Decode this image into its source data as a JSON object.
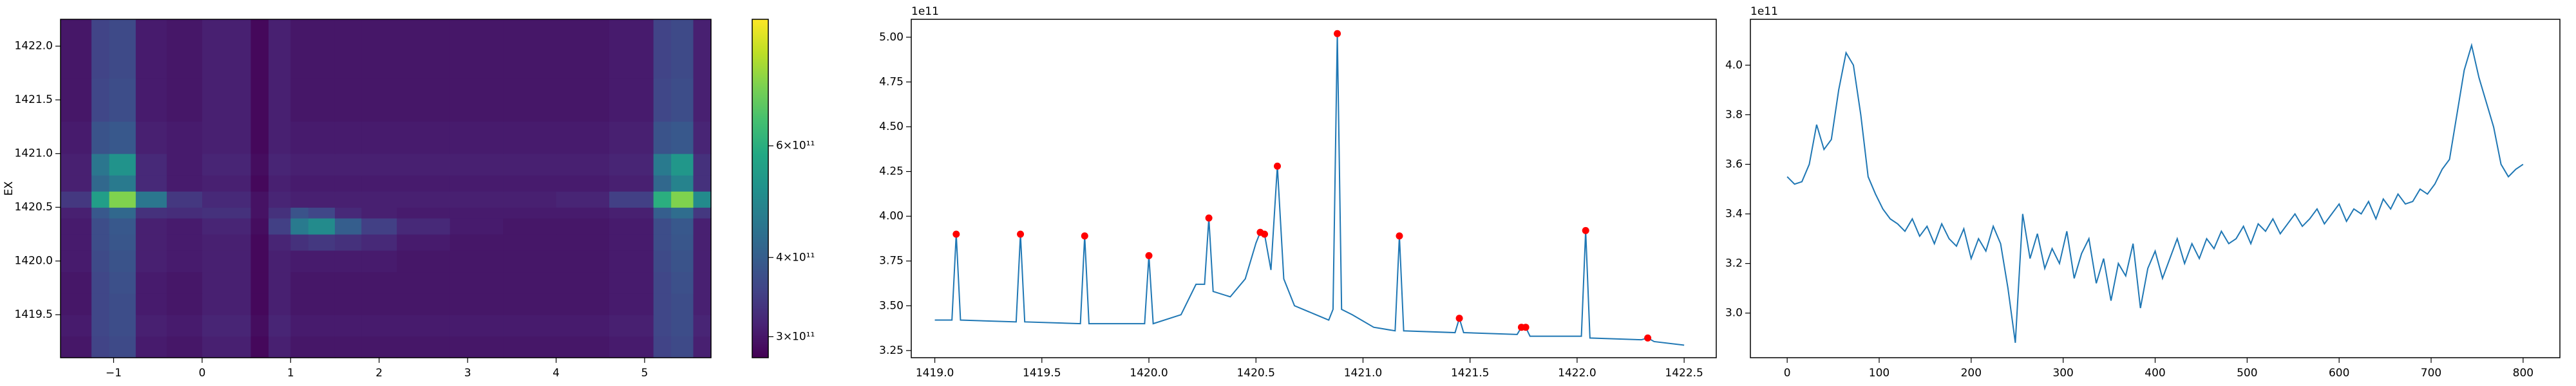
{
  "chart_data": [
    {
      "type": "heatmap",
      "ylabel": "EX",
      "colormap": "viridis",
      "xedges": [
        -1.6,
        -1.25,
        -1.05,
        -0.75,
        -0.4,
        0,
        0.55,
        0.75,
        1.0,
        1.2,
        1.5,
        1.8,
        2.2,
        2.8,
        3.4,
        4.0,
        4.6,
        5.1,
        5.3,
        5.55,
        5.75
      ],
      "yedges": [
        1419.1,
        1419.3,
        1419.5,
        1419.7,
        1419.9,
        1420.1,
        1420.25,
        1420.4,
        1420.5,
        1420.65,
        1420.8,
        1421.0,
        1421.3,
        1421.7,
        1422.25
      ],
      "z": [
        [
          300000000000.0,
          355000000000.0,
          365000000000.0,
          305000000000.0,
          300000000000.0,
          310000000000.0,
          285000000000.0,
          310000000000.0,
          300000000000.0,
          300000000000.0,
          300000000000.0,
          300000000000.0,
          300000000000.0,
          300000000000.0,
          300000000000.0,
          300000000000.0,
          305000000000.0,
          355000000000.0,
          365000000000.0,
          310000000000.0
        ],
        [
          305000000000.0,
          360000000000.0,
          370000000000.0,
          310000000000.0,
          305000000000.0,
          315000000000.0,
          290000000000.0,
          315000000000.0,
          305000000000.0,
          305000000000.0,
          305000000000.0,
          305000000000.0,
          305000000000.0,
          305000000000.0,
          305000000000.0,
          305000000000.0,
          310000000000.0,
          360000000000.0,
          370000000000.0,
          315000000000.0
        ],
        [
          300000000000.0,
          360000000000.0,
          370000000000.0,
          305000000000.0,
          300000000000.0,
          310000000000.0,
          285000000000.0,
          310000000000.0,
          300000000000.0,
          300000000000.0,
          300000000000.0,
          300000000000.0,
          300000000000.0,
          300000000000.0,
          300000000000.0,
          300000000000.0,
          305000000000.0,
          360000000000.0,
          370000000000.0,
          310000000000.0
        ],
        [
          300000000000.0,
          360000000000.0,
          375000000000.0,
          305000000000.0,
          300000000000.0,
          310000000000.0,
          285000000000.0,
          310000000000.0,
          300000000000.0,
          300000000000.0,
          300000000000.0,
          300000000000.0,
          300000000000.0,
          300000000000.0,
          300000000000.0,
          300000000000.0,
          305000000000.0,
          360000000000.0,
          375000000000.0,
          310000000000.0
        ],
        [
          305000000000.0,
          365000000000.0,
          380000000000.0,
          310000000000.0,
          305000000000.0,
          310000000000.0,
          285000000000.0,
          310000000000.0,
          305000000000.0,
          305000000000.0,
          305000000000.0,
          305000000000.0,
          300000000000.0,
          300000000000.0,
          300000000000.0,
          300000000000.0,
          305000000000.0,
          365000000000.0,
          380000000000.0,
          310000000000.0
        ],
        [
          305000000000.0,
          370000000000.0,
          385000000000.0,
          310000000000.0,
          305000000000.0,
          310000000000.0,
          285000000000.0,
          315000000000.0,
          330000000000.0,
          340000000000.0,
          330000000000.0,
          320000000000.0,
          305000000000.0,
          300000000000.0,
          300000000000.0,
          300000000000.0,
          305000000000.0,
          370000000000.0,
          385000000000.0,
          310000000000.0
        ],
        [
          305000000000.0,
          370000000000.0,
          390000000000.0,
          310000000000.0,
          305000000000.0,
          315000000000.0,
          290000000000.0,
          350000000000.0,
          460000000000.0,
          500000000000.0,
          400000000000.0,
          350000000000.0,
          320000000000.0,
          305000000000.0,
          300000000000.0,
          300000000000.0,
          305000000000.0,
          370000000000.0,
          390000000000.0,
          310000000000.0
        ],
        [
          310000000000.0,
          390000000000.0,
          420000000000.0,
          330000000000.0,
          325000000000.0,
          330000000000.0,
          295000000000.0,
          330000000000.0,
          380000000000.0,
          360000000000.0,
          320000000000.0,
          310000000000.0,
          305000000000.0,
          305000000000.0,
          305000000000.0,
          305000000000.0,
          310000000000.0,
          400000000000.0,
          430000000000.0,
          340000000000.0
        ],
        [
          340000000000.0,
          550000000000.0,
          750000000000.0,
          450000000000.0,
          340000000000.0,
          320000000000.0,
          295000000000.0,
          315000000000.0,
          310000000000.0,
          310000000000.0,
          310000000000.0,
          310000000000.0,
          310000000000.0,
          310000000000.0,
          310000000000.0,
          315000000000.0,
          350000000000.0,
          600000000000.0,
          750000000000.0,
          500000000000.0
        ],
        [
          310000000000.0,
          420000000000.0,
          460000000000.0,
          320000000000.0,
          305000000000.0,
          310000000000.0,
          285000000000.0,
          310000000000.0,
          305000000000.0,
          305000000000.0,
          305000000000.0,
          305000000000.0,
          305000000000.0,
          305000000000.0,
          305000000000.0,
          305000000000.0,
          310000000000.0,
          420000000000.0,
          480000000000.0,
          330000000000.0
        ],
        [
          310000000000.0,
          450000000000.0,
          520000000000.0,
          320000000000.0,
          305000000000.0,
          315000000000.0,
          290000000000.0,
          315000000000.0,
          310000000000.0,
          310000000000.0,
          310000000000.0,
          310000000000.0,
          310000000000.0,
          310000000000.0,
          310000000000.0,
          310000000000.0,
          315000000000.0,
          460000000000.0,
          530000000000.0,
          330000000000.0
        ],
        [
          305000000000.0,
          380000000000.0,
          390000000000.0,
          310000000000.0,
          305000000000.0,
          310000000000.0,
          285000000000.0,
          310000000000.0,
          305000000000.0,
          305000000000.0,
          305000000000.0,
          305000000000.0,
          305000000000.0,
          305000000000.0,
          305000000000.0,
          305000000000.0,
          310000000000.0,
          380000000000.0,
          390000000000.0,
          315000000000.0
        ],
        [
          300000000000.0,
          360000000000.0,
          370000000000.0,
          305000000000.0,
          300000000000.0,
          310000000000.0,
          285000000000.0,
          310000000000.0,
          300000000000.0,
          300000000000.0,
          300000000000.0,
          300000000000.0,
          300000000000.0,
          300000000000.0,
          300000000000.0,
          300000000000.0,
          305000000000.0,
          360000000000.0,
          370000000000.0,
          310000000000.0
        ],
        [
          300000000000.0,
          355000000000.0,
          365000000000.0,
          305000000000.0,
          300000000000.0,
          310000000000.0,
          285000000000.0,
          310000000000.0,
          300000000000.0,
          300000000000.0,
          300000000000.0,
          300000000000.0,
          300000000000.0,
          300000000000.0,
          300000000000.0,
          300000000000.0,
          305000000000.0,
          355000000000.0,
          365000000000.0,
          310000000000.0
        ]
      ],
      "xlim": [
        -1.6,
        5.75
      ],
      "ylim": [
        1419.1,
        1422.25
      ],
      "xticks": [
        {
          "value": -1,
          "label": "−1"
        },
        0,
        1,
        2,
        3,
        4,
        5
      ],
      "yticks": [
        1419.5,
        {
          "value": 1420,
          "label": "1420.0"
        },
        1420.5,
        {
          "value": 1421,
          "label": "1421.0"
        },
        1421.5,
        {
          "value": 1422,
          "label": "1422.0"
        }
      ],
      "colorbar": {
        "scale": "log",
        "clim": [
          278000000000.0,
          950000000000.0
        ],
        "ticks": [
          {
            "value": 300000000000.0,
            "label": "3×10¹¹"
          },
          {
            "value": 400000000000.0,
            "label": "4×10¹¹"
          },
          {
            "value": 600000000000.0,
            "label": "6×10¹¹"
          }
        ]
      }
    },
    {
      "type": "line",
      "offset_text": "1e11",
      "x": [
        1419.0,
        1419.08,
        1419.1,
        1419.12,
        1419.38,
        1419.4,
        1419.42,
        1419.68,
        1419.7,
        1419.72,
        1419.98,
        1420.0,
        1420.02,
        1420.15,
        1420.22,
        1420.26,
        1420.28,
        1420.3,
        1420.38,
        1420.45,
        1420.5,
        1420.52,
        1420.54,
        1420.57,
        1420.6,
        1420.63,
        1420.68,
        1420.78,
        1420.84,
        1420.86,
        1420.88,
        1420.9,
        1420.95,
        1421.05,
        1421.15,
        1421.17,
        1421.19,
        1421.43,
        1421.45,
        1421.47,
        1421.72,
        1421.74,
        1421.76,
        1421.78,
        1422.02,
        1422.04,
        1422.06,
        1422.3,
        1422.33,
        1422.36,
        1422.5
      ],
      "series": [
        {
          "color": "#1f77b4",
          "values": [
            342000000000.0,
            342000000000.0,
            390000000000.0,
            342000000000.0,
            341000000000.0,
            390000000000.0,
            341000000000.0,
            340000000000.0,
            389000000000.0,
            340000000000.0,
            340000000000.0,
            378000000000.0,
            340000000000.0,
            345000000000.0,
            362000000000.0,
            362000000000.0,
            399000000000.0,
            358000000000.0,
            355000000000.0,
            365000000000.0,
            385000000000.0,
            391000000000.0,
            390000000000.0,
            370000000000.0,
            428000000000.0,
            365000000000.0,
            350000000000.0,
            345000000000.0,
            342000000000.0,
            348000000000.0,
            502000000000.0,
            348000000000.0,
            345000000000.0,
            338000000000.0,
            336000000000.0,
            389000000000.0,
            336000000000.0,
            335000000000.0,
            343000000000.0,
            335000000000.0,
            334000000000.0,
            338000000000.0,
            338000000000.0,
            333000000000.0,
            333000000000.0,
            392000000000.0,
            332000000000.0,
            331000000000.0,
            332000000000.0,
            330000000000.0,
            328000000000.0
          ]
        }
      ],
      "markers": {
        "color": "#ff0000",
        "x": [
          1419.1,
          1419.4,
          1419.7,
          1420.0,
          1420.28,
          1420.52,
          1420.54,
          1420.6,
          1420.88,
          1421.17,
          1421.45,
          1421.74,
          1421.76,
          1422.04,
          1422.33
        ],
        "values": [
          390000000000.0,
          390000000000.0,
          389000000000.0,
          378000000000.0,
          399000000000.0,
          391000000000.0,
          390000000000.0,
          428000000000.0,
          502000000000.0,
          389000000000.0,
          343000000000.0,
          338000000000.0,
          338000000000.0,
          392000000000.0,
          332000000000.0
        ]
      },
      "xlim": [
        1418.89,
        1422.65
      ],
      "ylim": [
        321000000000.0,
        510000000000.0
      ],
      "xticks": [
        {
          "value": 1419,
          "label": "1419.0"
        },
        1419.5,
        {
          "value": 1420,
          "label": "1420.0"
        },
        1420.5,
        {
          "value": 1421,
          "label": "1421.0"
        },
        1421.5,
        {
          "value": 1422,
          "label": "1422.0"
        },
        1422.5
      ],
      "yticks": [
        {
          "value": 325000000000.0,
          "label": "3.25"
        },
        {
          "value": 350000000000.0,
          "label": "3.50"
        },
        {
          "value": 375000000000.0,
          "label": "3.75"
        },
        {
          "value": 400000000000.0,
          "label": "4.00"
        },
        {
          "value": 425000000000.0,
          "label": "4.25"
        },
        {
          "value": 450000000000.0,
          "label": "4.50"
        },
        {
          "value": 475000000000.0,
          "label": "4.75"
        },
        {
          "value": 500000000000.0,
          "label": "5.00"
        }
      ]
    },
    {
      "type": "line",
      "offset_text": "1e11",
      "x": [
        0,
        8,
        16,
        24,
        32,
        40,
        48,
        56,
        64,
        72,
        80,
        88,
        96,
        104,
        112,
        120,
        128,
        136,
        144,
        152,
        160,
        168,
        176,
        184,
        192,
        200,
        208,
        216,
        224,
        232,
        240,
        248,
        256,
        264,
        272,
        280,
        288,
        296,
        304,
        312,
        320,
        328,
        336,
        344,
        352,
        360,
        368,
        376,
        384,
        392,
        400,
        408,
        416,
        424,
        432,
        440,
        448,
        456,
        464,
        472,
        480,
        488,
        496,
        504,
        512,
        520,
        528,
        536,
        544,
        552,
        560,
        568,
        576,
        584,
        592,
        600,
        608,
        616,
        624,
        632,
        640,
        648,
        656,
        664,
        672,
        680,
        688,
        696,
        704,
        712,
        720,
        728,
        736,
        744,
        752,
        760,
        768,
        776,
        784,
        792,
        800
      ],
      "series": [
        {
          "color": "#1f77b4",
          "values": [
            355000000000.0,
            352000000000.0,
            353000000000.0,
            360000000000.0,
            376000000000.0,
            366000000000.0,
            370000000000.0,
            390000000000.0,
            405000000000.0,
            400000000000.0,
            380000000000.0,
            355000000000.0,
            348000000000.0,
            342000000000.0,
            338000000000.0,
            336000000000.0,
            333000000000.0,
            338000000000.0,
            331000000000.0,
            335000000000.0,
            328000000000.0,
            336000000000.0,
            330000000000.0,
            327000000000.0,
            334000000000.0,
            322000000000.0,
            330000000000.0,
            325000000000.0,
            335000000000.0,
            328000000000.0,
            310000000000.0,
            288000000000.0,
            340000000000.0,
            322000000000.0,
            332000000000.0,
            318000000000.0,
            326000000000.0,
            320000000000.0,
            333000000000.0,
            314000000000.0,
            324000000000.0,
            330000000000.0,
            312000000000.0,
            322000000000.0,
            305000000000.0,
            320000000000.0,
            315000000000.0,
            328000000000.0,
            302000000000.0,
            318000000000.0,
            325000000000.0,
            314000000000.0,
            322000000000.0,
            330000000000.0,
            320000000000.0,
            328000000000.0,
            322000000000.0,
            330000000000.0,
            326000000000.0,
            333000000000.0,
            328000000000.0,
            330000000000.0,
            335000000000.0,
            328000000000.0,
            336000000000.0,
            333000000000.0,
            338000000000.0,
            332000000000.0,
            336000000000.0,
            340000000000.0,
            335000000000.0,
            338000000000.0,
            342000000000.0,
            336000000000.0,
            340000000000.0,
            344000000000.0,
            337000000000.0,
            342000000000.0,
            340000000000.0,
            345000000000.0,
            338000000000.0,
            346000000000.0,
            342000000000.0,
            348000000000.0,
            344000000000.0,
            345000000000.0,
            350000000000.0,
            348000000000.0,
            352000000000.0,
            358000000000.0,
            362000000000.0,
            380000000000.0,
            398000000000.0,
            408000000000.0,
            395000000000.0,
            385000000000.0,
            375000000000.0,
            360000000000.0,
            355000000000.0,
            358000000000.0,
            360000000000.0
          ]
        }
      ],
      "xlim": [
        -40,
        840
      ],
      "ylim": [
        282000000000.0,
        418500000000.0
      ],
      "xticks": [
        0,
        100,
        200,
        300,
        400,
        500,
        600,
        700,
        800
      ],
      "yticks": [
        {
          "value": 300000000000.0,
          "label": "3.0"
        },
        {
          "value": 320000000000.0,
          "label": "3.2"
        },
        {
          "value": 340000000000.0,
          "label": "3.4"
        },
        {
          "value": 360000000000.0,
          "label": "3.6"
        },
        {
          "value": 380000000000.0,
          "label": "3.8"
        },
        {
          "value": 400000000000.0,
          "label": "4.0"
        }
      ]
    }
  ]
}
